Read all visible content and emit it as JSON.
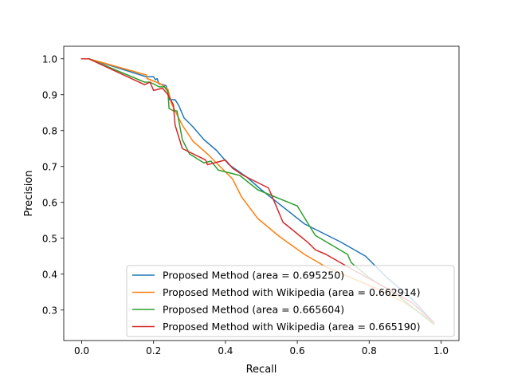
{
  "chart_data": {
    "type": "line",
    "title": "",
    "xlabel": "Recall",
    "ylabel": "Precision",
    "xlim": [
      -0.05,
      1.05
    ],
    "ylim": [
      0.215,
      1.035
    ],
    "xticks": [
      0.0,
      0.2,
      0.4,
      0.6,
      0.8,
      1.0
    ],
    "xtick_labels": [
      "0.0",
      "0.2",
      "0.4",
      "0.6",
      "0.8",
      "1.0"
    ],
    "yticks": [
      0.3,
      0.4,
      0.5,
      0.6,
      0.7,
      0.8,
      0.9,
      1.0
    ],
    "ytick_labels": [
      "0.3",
      "0.4",
      "0.5",
      "0.6",
      "0.7",
      "0.8",
      "0.9",
      "1.0"
    ],
    "grid": false,
    "legend_position": "lower-right",
    "series": [
      {
        "name": "Proposed Method (area = 0.695250)",
        "color": "#1f77b4",
        "points": [
          [
            0.0,
            1.0
          ],
          [
            0.02,
            1.0
          ],
          [
            0.18,
            0.95
          ],
          [
            0.2,
            0.95
          ],
          [
            0.205,
            0.942
          ],
          [
            0.21,
            0.945
          ],
          [
            0.215,
            0.93
          ],
          [
            0.225,
            0.928
          ],
          [
            0.235,
            0.925
          ],
          [
            0.245,
            0.886
          ],
          [
            0.26,
            0.886
          ],
          [
            0.27,
            0.87
          ],
          [
            0.285,
            0.835
          ],
          [
            0.31,
            0.81
          ],
          [
            0.34,
            0.775
          ],
          [
            0.375,
            0.745
          ],
          [
            0.41,
            0.705
          ],
          [
            0.46,
            0.67
          ],
          [
            0.5,
            0.635
          ],
          [
            0.62,
            0.54
          ],
          [
            0.72,
            0.49
          ],
          [
            0.79,
            0.45
          ],
          [
            0.85,
            0.39
          ],
          [
            0.92,
            0.33
          ],
          [
            0.98,
            0.265
          ]
        ]
      },
      {
        "name": "Proposed Method with Wikipedia (area = 0.662914)",
        "color": "#ff7f0e",
        "points": [
          [
            0.0,
            1.0
          ],
          [
            0.02,
            1.0
          ],
          [
            0.18,
            0.955
          ],
          [
            0.182,
            0.945
          ],
          [
            0.195,
            0.94
          ],
          [
            0.22,
            0.93
          ],
          [
            0.24,
            0.915
          ],
          [
            0.25,
            0.875
          ],
          [
            0.265,
            0.845
          ],
          [
            0.28,
            0.815
          ],
          [
            0.31,
            0.77
          ],
          [
            0.35,
            0.735
          ],
          [
            0.385,
            0.7
          ],
          [
            0.42,
            0.665
          ],
          [
            0.445,
            0.615
          ],
          [
            0.49,
            0.555
          ],
          [
            0.55,
            0.505
          ],
          [
            0.62,
            0.455
          ],
          [
            0.68,
            0.42
          ],
          [
            0.75,
            0.39
          ],
          [
            0.82,
            0.36
          ],
          [
            0.9,
            0.32
          ],
          [
            0.98,
            0.265
          ]
        ]
      },
      {
        "name": "Proposed Method (area = 0.665604)",
        "color": "#2ca02c",
        "points": [
          [
            0.0,
            1.0
          ],
          [
            0.02,
            1.0
          ],
          [
            0.175,
            0.935
          ],
          [
            0.19,
            0.935
          ],
          [
            0.2,
            0.93
          ],
          [
            0.215,
            0.922
          ],
          [
            0.23,
            0.922
          ],
          [
            0.24,
            0.908
          ],
          [
            0.243,
            0.862
          ],
          [
            0.255,
            0.855
          ],
          [
            0.265,
            0.855
          ],
          [
            0.28,
            0.775
          ],
          [
            0.3,
            0.735
          ],
          [
            0.34,
            0.71
          ],
          [
            0.36,
            0.715
          ],
          [
            0.38,
            0.69
          ],
          [
            0.44,
            0.675
          ],
          [
            0.49,
            0.635
          ],
          [
            0.6,
            0.59
          ],
          [
            0.65,
            0.508
          ],
          [
            0.74,
            0.455
          ],
          [
            0.75,
            0.432
          ],
          [
            0.8,
            0.39
          ],
          [
            0.88,
            0.34
          ],
          [
            0.98,
            0.26
          ]
        ]
      },
      {
        "name": "Proposed Method with Wikipedia (area = 0.665190)",
        "color": "#d62728",
        "points": [
          [
            0.0,
            1.0
          ],
          [
            0.02,
            1.0
          ],
          [
            0.175,
            0.928
          ],
          [
            0.19,
            0.935
          ],
          [
            0.2,
            0.912
          ],
          [
            0.225,
            0.918
          ],
          [
            0.24,
            0.9
          ],
          [
            0.255,
            0.872
          ],
          [
            0.26,
            0.815
          ],
          [
            0.28,
            0.75
          ],
          [
            0.3,
            0.74
          ],
          [
            0.345,
            0.718
          ],
          [
            0.35,
            0.705
          ],
          [
            0.4,
            0.718
          ],
          [
            0.42,
            0.695
          ],
          [
            0.45,
            0.675
          ],
          [
            0.52,
            0.64
          ],
          [
            0.56,
            0.545
          ],
          [
            0.63,
            0.488
          ],
          [
            0.65,
            0.468
          ],
          [
            0.68,
            0.455
          ],
          [
            0.75,
            0.415
          ],
          [
            0.85,
            0.36
          ],
          [
            0.92,
            0.32
          ],
          [
            0.98,
            0.265
          ]
        ]
      }
    ]
  }
}
